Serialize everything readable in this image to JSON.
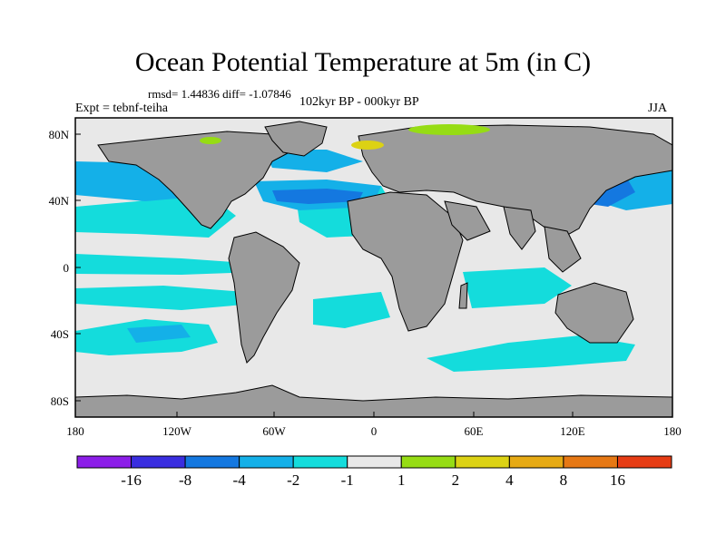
{
  "title": "Ocean Potential Temperature at 5m (in C)",
  "stats": "rmsd= 1.44836 diff= -1.07846",
  "experiment": "Expt = tebnf-teiha",
  "period": "102kyr BP - 000kyr BP",
  "season": "JJA",
  "lat_labels": [
    "80N",
    "40N",
    "0",
    "40S",
    "80S"
  ],
  "lon_labels": [
    "180",
    "120W",
    "60W",
    "0",
    "60E",
    "120E",
    "180"
  ],
  "colorbar": {
    "colors": [
      "#8c1ee8",
      "#3a2ee0",
      "#1478e0",
      "#14b0e8",
      "#14dcdc",
      "#e8e8e8",
      "#96dc14",
      "#dcd214",
      "#e6aa14",
      "#e67814",
      "#e63c14"
    ],
    "labels": [
      "-16",
      "-8",
      "-4",
      "-2",
      "-1",
      "1",
      "2",
      "4",
      "8",
      "16"
    ]
  },
  "colors": {
    "land": "#9b9b9b",
    "neutral": "#e8e8e8"
  }
}
